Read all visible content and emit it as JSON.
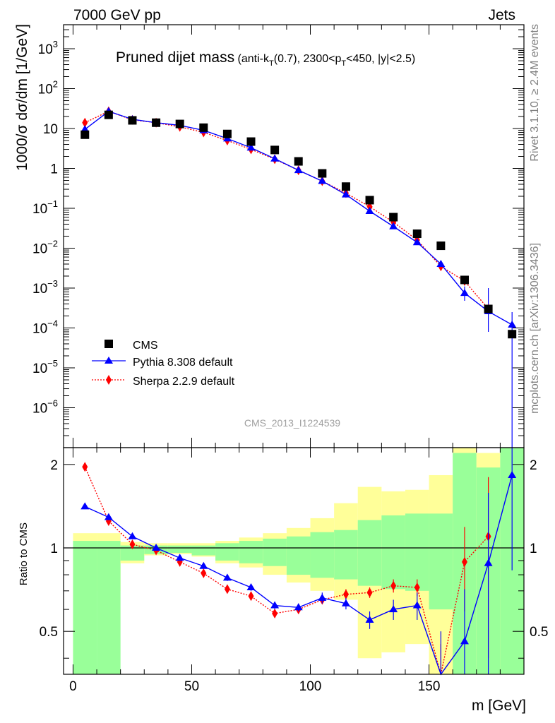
{
  "header": {
    "left": "7000 GeV pp",
    "right": "Jets"
  },
  "side_labels": {
    "rivet": "Rivet 3.1.10, ≥ 2.4M events",
    "source": "mcplots.cern.ch [arXiv:1306.3436]"
  },
  "chart_data": {
    "type": "scatter",
    "title": "Pruned dijet mass",
    "title_suffix": "(anti-k_T(0.7), 2300<p_T<450, |y|<2.5)",
    "watermark": "CMS_2013_I1224539",
    "xlabel": "m [GeV]",
    "ylabel": "1000/σ dσ/dm [1/GeV]",
    "ratio_ylabel": "Ratio to CMS",
    "xlim": [
      -4,
      190
    ],
    "ylim": [
      1e-07,
      4000
    ],
    "ylog": true,
    "ratio_ylim": [
      0.35,
      2.3
    ],
    "x_ticks": [
      "0",
      "50",
      "100",
      "150"
    ],
    "y_ticks": [
      "10^-6",
      "10^-5",
      "10^-4",
      "10^-3",
      "10^-2",
      "10^-1",
      "1",
      "10",
      "10^2",
      "10^3"
    ],
    "ratio_ticks": [
      "0.5",
      "1",
      "2"
    ],
    "legend_position": "bottom-left",
    "series": [
      {
        "name": "CMS",
        "color": "#000000",
        "marker": "square",
        "x": [
          5,
          15,
          25,
          35,
          45,
          55,
          65,
          75,
          85,
          95,
          105,
          115,
          125,
          135,
          145,
          155,
          165,
          175,
          185
        ],
        "values": [
          7,
          22,
          16,
          14,
          13,
          10.5,
          7.3,
          4.7,
          2.9,
          1.5,
          0.75,
          0.35,
          0.16,
          0.06,
          0.023,
          0.0115,
          0.0016,
          0.0003,
          7e-05
        ]
      },
      {
        "name": "Pythia 8.308 default",
        "color": "#0000ff",
        "marker": "triangle",
        "line": "solid",
        "x": [
          5,
          15,
          25,
          35,
          45,
          55,
          65,
          75,
          85,
          95,
          105,
          115,
          125,
          135,
          145,
          155,
          165,
          175,
          185
        ],
        "values": [
          9.5,
          27,
          17,
          14,
          12,
          9,
          5.6,
          3.3,
          1.75,
          0.9,
          0.48,
          0.22,
          0.085,
          0.035,
          0.014,
          0.004,
          0.00075,
          0.00026,
          0.00012
        ],
        "ratio": [
          1.41,
          1.29,
          1.1,
          1.0,
          0.92,
          0.86,
          0.78,
          0.72,
          0.62,
          0.61,
          0.66,
          0.63,
          0.55,
          0.6,
          0.62,
          0.3,
          0.46,
          0.88,
          1.83
        ]
      },
      {
        "name": "Sherpa 2.2.9 default",
        "color": "#ff0000",
        "marker": "diamond",
        "line": "dotted",
        "x": [
          5,
          15,
          25,
          35,
          45,
          55,
          65,
          75,
          85,
          95,
          105,
          115,
          125,
          135,
          145,
          155,
          165,
          175,
          185
        ],
        "values": [
          14,
          27,
          16.5,
          14,
          11,
          8,
          5,
          3,
          1.7,
          0.9,
          0.48,
          0.24,
          0.11,
          0.045,
          0.016,
          0.0035,
          0.0015,
          0.0003,
          null
        ],
        "ratio": [
          1.96,
          1.25,
          1.03,
          0.98,
          0.89,
          0.81,
          0.71,
          0.67,
          0.58,
          0.6,
          0.65,
          0.68,
          0.69,
          0.73,
          0.72,
          0.25,
          0.89,
          1.1,
          null
        ]
      }
    ],
    "ratio_bands": {
      "x_edges": [
        0,
        10,
        20,
        30,
        40,
        50,
        60,
        70,
        80,
        90,
        100,
        110,
        120,
        130,
        140,
        150,
        160,
        170,
        180,
        190
      ],
      "inner_low": [
        0.0,
        0.0,
        0.9,
        0.95,
        0.96,
        0.94,
        0.9,
        0.88,
        0.86,
        0.8,
        0.78,
        0.77,
        0.73,
        0.71,
        0.7,
        0.6,
        0.0,
        0.0,
        0.0
      ],
      "inner_high": [
        1.06,
        1.06,
        1.02,
        1.02,
        1.02,
        1.02,
        1.04,
        1.06,
        1.08,
        1.1,
        1.14,
        1.16,
        1.26,
        1.31,
        1.33,
        1.33,
        2.2,
        1.95,
        2.3
      ],
      "outer_low": [
        0.0,
        0.7,
        0.88,
        0.94,
        0.95,
        0.93,
        0.88,
        0.85,
        0.8,
        0.75,
        0.7,
        0.65,
        0.4,
        0.42,
        0.45,
        0.0,
        0.0,
        0.0,
        0.0
      ],
      "outer_high": [
        1.13,
        1.13,
        1.05,
        1.04,
        1.04,
        1.04,
        1.06,
        1.09,
        1.13,
        1.18,
        1.28,
        1.45,
        1.66,
        1.6,
        1.62,
        1.83,
        2.5,
        2.2,
        2.5
      ],
      "inner_color": "#99ff99",
      "outer_color": "#ffff99"
    },
    "pythia_ratio_errors": [
      0.03,
      0.03,
      0.02,
      0.02,
      0.02,
      0.02,
      0.02,
      0.02,
      0.02,
      0.02,
      0.03,
      0.03,
      0.04,
      0.05,
      0.07,
      0.2,
      0.25,
      0.7,
      1.0
    ],
    "sherpa_ratio_errors": [
      0.02,
      0.02,
      0.02,
      0.02,
      0.02,
      0.02,
      0.02,
      0.02,
      0.02,
      0.02,
      0.02,
      0.03,
      0.03,
      0.04,
      0.05,
      0.2,
      0.3,
      0.7,
      0
    ]
  }
}
